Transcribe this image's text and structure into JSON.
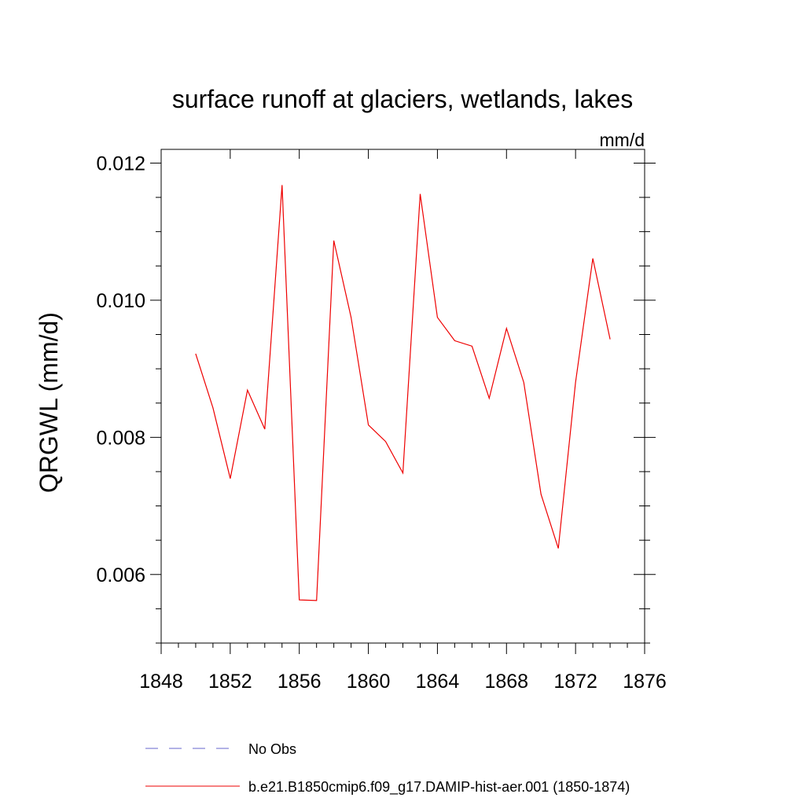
{
  "chart_data": {
    "type": "line",
    "title": "surface runoff at glaciers, wetlands, lakes",
    "units": "mm/d",
    "xlabel": "",
    "ylabel": "QRGWL  (mm/d)",
    "xlim": [
      1848,
      1876
    ],
    "ylim": [
      0.005,
      0.0122
    ],
    "x_ticks": [
      1848,
      1852,
      1856,
      1860,
      1864,
      1868,
      1872,
      1876
    ],
    "x_tick_labels": [
      "1848",
      "1852",
      "1856",
      "1860",
      "1864",
      "1868",
      "1872",
      "1876"
    ],
    "y_ticks": [
      0.006,
      0.008,
      0.01,
      0.012
    ],
    "y_tick_labels": [
      "0.006",
      "0.008",
      "0.010",
      "0.012"
    ],
    "grid": false,
    "legend_position": "bottom",
    "legend": [
      {
        "label": "No Obs",
        "color": "#6666cc",
        "dash": "dashed"
      },
      {
        "label": "b.e21.B1850cmip6.f09_g17.DAMIP-hist-aer.001 (1850-1874)",
        "color": "#ee0000",
        "dash": "solid"
      }
    ],
    "series": [
      {
        "name": "b.e21.B1850cmip6.f09_g17.DAMIP-hist-aer.001 (1850-1874)",
        "color": "#ee0000",
        "x": [
          1850,
          1851,
          1852,
          1853,
          1854,
          1855,
          1856,
          1857,
          1858,
          1859,
          1860,
          1861,
          1862,
          1863,
          1864,
          1865,
          1866,
          1867,
          1868,
          1869,
          1870,
          1871,
          1872,
          1873,
          1874
        ],
        "y": [
          0.00922,
          0.00843,
          0.0074,
          0.00869,
          0.00812,
          0.01168,
          0.00563,
          0.00562,
          0.01087,
          0.00975,
          0.00818,
          0.00794,
          0.00748,
          0.01155,
          0.00975,
          0.00941,
          0.00933,
          0.00857,
          0.00959,
          0.0088,
          0.00717,
          0.00638,
          0.0088,
          0.01061,
          0.00943
        ]
      }
    ]
  }
}
